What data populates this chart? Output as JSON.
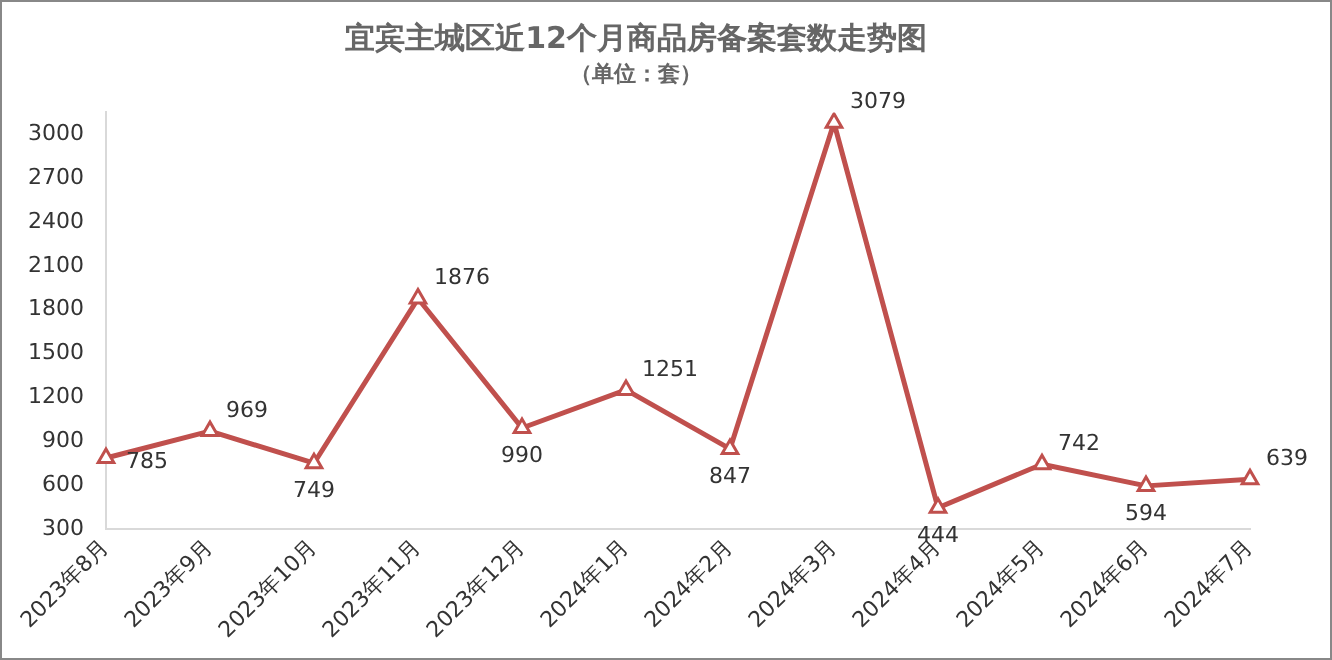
{
  "chart_data": {
    "type": "line",
    "title": "宜宾主城区近12个月商品房备案套数走势图",
    "subtitle": "（单位：套）",
    "categories": [
      "2023年8月",
      "2023年9月",
      "2023年10月",
      "2023年11月",
      "2023年12月",
      "2024年1月",
      "2024年2月",
      "2024年3月",
      "2024年4月",
      "2024年5月",
      "2024年6月",
      "2024年7月"
    ],
    "series": [
      {
        "color": "#c0504d",
        "values": [
          785,
          969,
          749,
          1876,
          990,
          1251,
          847,
          3079,
          444,
          742,
          594,
          639
        ]
      }
    ],
    "ylim": [
      300,
      3150
    ],
    "yticks": [
      300,
      600,
      900,
      1200,
      1500,
      1800,
      2100,
      2400,
      2700,
      3000
    ],
    "grid": false,
    "legend": false,
    "marker": "triangle",
    "line_style": "solid",
    "data_labels": true
  }
}
